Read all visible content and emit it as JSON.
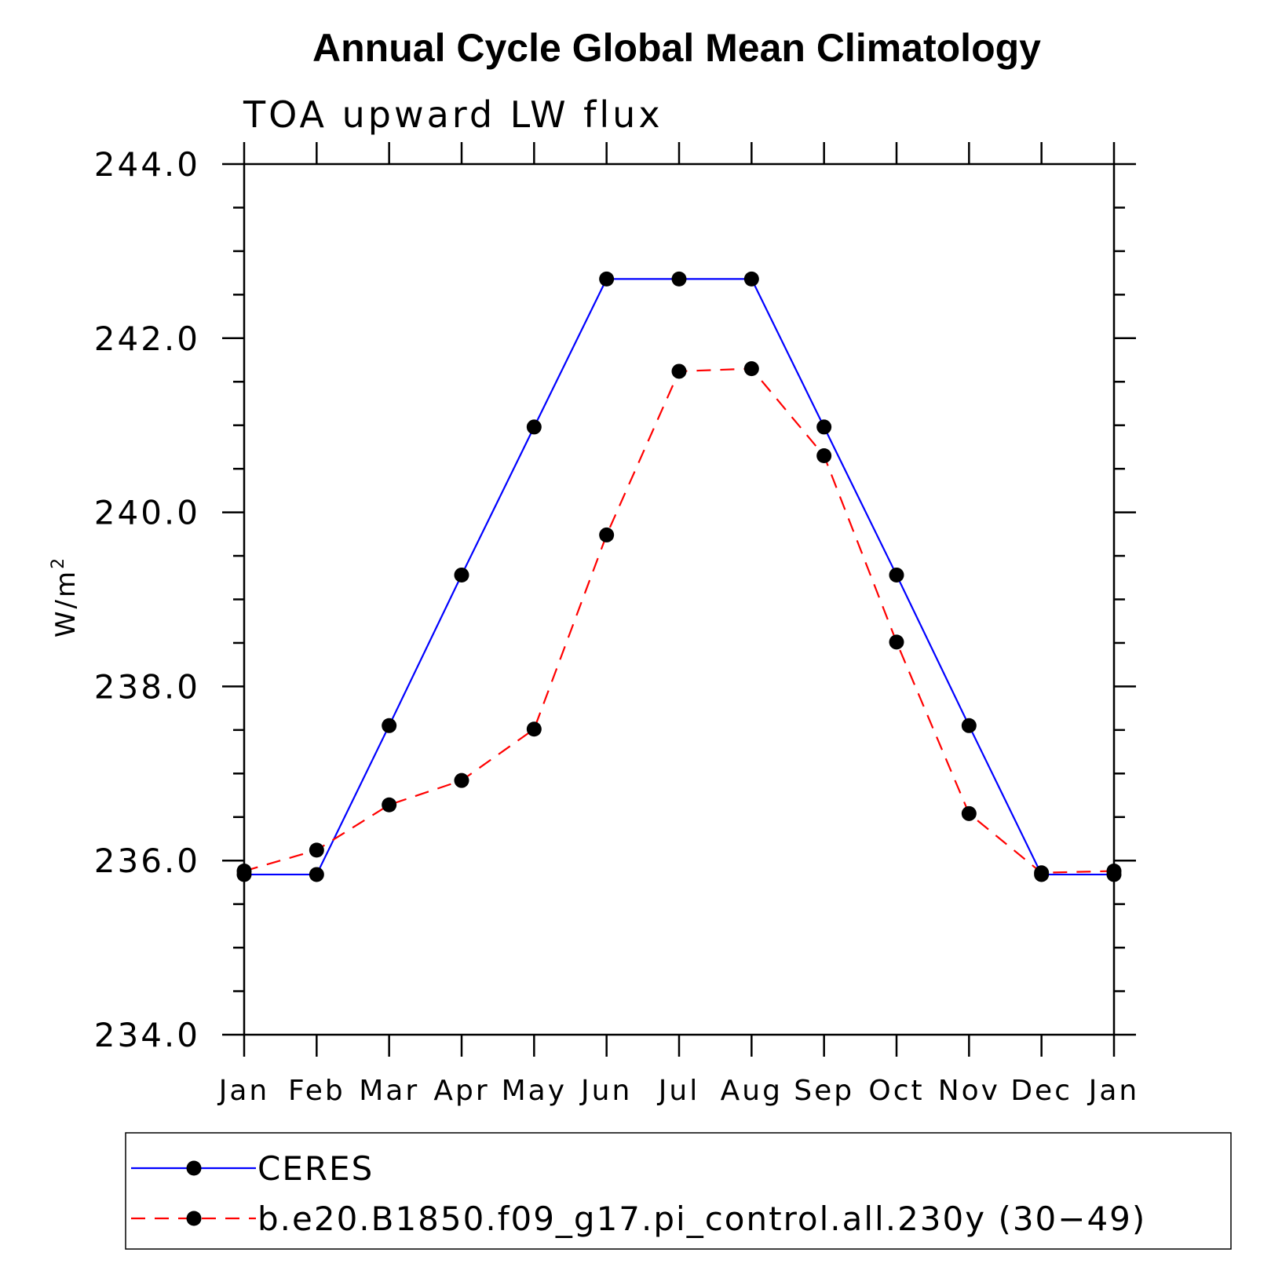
{
  "chart_data": {
    "type": "line",
    "title": "Annual Cycle Global Mean Climatology",
    "subtitle": "TOA upward LW flux",
    "ylabel": "W/m",
    "ylabel_superscript": "2",
    "xlabel": "",
    "categories": [
      "Jan",
      "Feb",
      "Mar",
      "Apr",
      "May",
      "Jun",
      "Jul",
      "Aug",
      "Sep",
      "Oct",
      "Nov",
      "Dec",
      "Jan"
    ],
    "ylim": [
      234.0,
      244.0
    ],
    "yticks": [
      "234.0",
      "236.0",
      "238.0",
      "240.0",
      "242.0",
      "244.0"
    ],
    "grid": false,
    "legend_position": "bottom",
    "series": [
      {
        "name": "CERES",
        "color": "#0000ff",
        "style": "solid",
        "marker": "filled-circle",
        "values": [
          235.84,
          235.84,
          237.55,
          239.28,
          240.98,
          242.68,
          242.68,
          242.68,
          240.98,
          239.28,
          237.55,
          235.84,
          235.84
        ]
      },
      {
        "name": "b.e20.B1850.f09_g17.pi_control.all.230y (30−49)",
        "color": "#ff0000",
        "style": "dashed",
        "marker": "filled-circle",
        "values": [
          235.88,
          236.12,
          236.64,
          236.92,
          237.51,
          239.74,
          241.62,
          241.65,
          240.65,
          238.51,
          236.54,
          235.86,
          235.88
        ]
      }
    ]
  }
}
